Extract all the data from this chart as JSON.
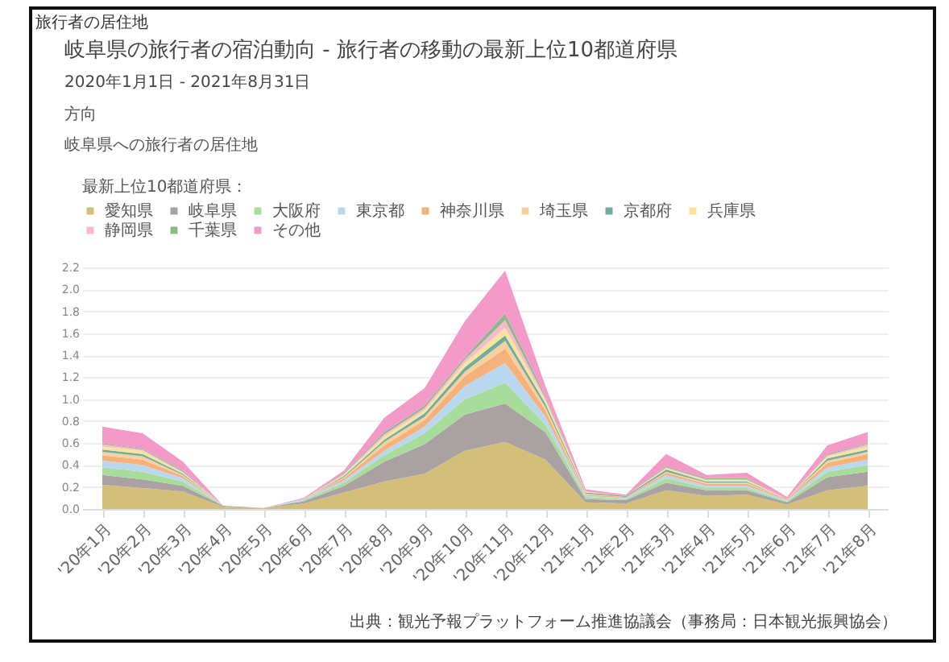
{
  "chart_data": {
    "type": "area",
    "stacked": true,
    "title": "岐阜県の旅行者の宿泊動向 - 旅行者の移動の最新上位10都道府県",
    "subtitle": "2020年1月1日 - 2021年8月31日",
    "annotations": [
      "旅行者の居住地",
      "方向",
      "岐阜県への旅行者の居住地",
      "出典：観光予報プラットフォーム推進協議会（事務局：日本観光振興協会）"
    ],
    "legend_title": "最新上位10都道府県：",
    "categories": [
      "'20年1月",
      "'20年2月",
      "'20年3月",
      "'20年4月",
      "'20年5月",
      "'20年6月",
      "'20年7月",
      "'20年8月",
      "'20年9月",
      "'20年10月",
      "'20年11月",
      "'20年12月",
      "'21年1月",
      "'21年2月",
      "'21年3月",
      "'21年4月",
      "'21年5月",
      "'21年6月",
      "'21年7月",
      "'21年8月"
    ],
    "series": [
      {
        "name": "愛知県",
        "color": "#d4bf7a",
        "values": [
          0.22,
          0.19,
          0.16,
          0.02,
          0.01,
          0.05,
          0.15,
          0.25,
          0.32,
          0.53,
          0.61,
          0.45,
          0.06,
          0.05,
          0.17,
          0.12,
          0.13,
          0.04,
          0.17,
          0.21
        ]
      },
      {
        "name": "岐阜県",
        "color": "#aaa2a2",
        "values": [
          0.09,
          0.08,
          0.05,
          0.01,
          0,
          0.02,
          0.06,
          0.18,
          0.27,
          0.33,
          0.35,
          0.25,
          0.03,
          0.03,
          0.07,
          0.05,
          0.04,
          0.02,
          0.12,
          0.13
        ]
      },
      {
        "name": "大阪府",
        "color": "#a8dc9a",
        "values": [
          0.07,
          0.07,
          0.04,
          0,
          0,
          0.01,
          0.03,
          0.06,
          0.1,
          0.14,
          0.19,
          0.07,
          0.02,
          0.01,
          0.04,
          0.02,
          0.02,
          0.01,
          0.05,
          0.06
        ]
      },
      {
        "name": "東京都",
        "color": "#b9d8ef",
        "values": [
          0.06,
          0.06,
          0.03,
          0,
          0,
          0.01,
          0.02,
          0.04,
          0.06,
          0.12,
          0.18,
          0.07,
          0.01,
          0.01,
          0.03,
          0.02,
          0.02,
          0.01,
          0.04,
          0.05
        ]
      },
      {
        "name": "神奈川県",
        "color": "#f4b27a",
        "values": [
          0.05,
          0.05,
          0.02,
          0,
          0,
          0,
          0.02,
          0.05,
          0.06,
          0.09,
          0.13,
          0.06,
          0.01,
          0.01,
          0.02,
          0.02,
          0.02,
          0.01,
          0.04,
          0.05
        ]
      },
      {
        "name": "埼玉県",
        "color": "#f8d0a0",
        "values": [
          0.03,
          0.03,
          0.01,
          0,
          0,
          0,
          0.01,
          0.03,
          0.03,
          0.04,
          0.07,
          0.03,
          0.01,
          0,
          0.01,
          0.01,
          0.01,
          0,
          0.02,
          0.02
        ]
      },
      {
        "name": "京都府",
        "color": "#6fae9e",
        "values": [
          0.02,
          0.02,
          0.01,
          0,
          0,
          0,
          0.01,
          0.02,
          0.03,
          0.04,
          0.05,
          0.03,
          0.01,
          0.01,
          0.02,
          0.01,
          0.01,
          0,
          0.02,
          0.02
        ]
      },
      {
        "name": "兵庫県",
        "color": "#fbe39c",
        "values": [
          0.03,
          0.03,
          0.01,
          0,
          0,
          0,
          0.01,
          0.03,
          0.03,
          0.04,
          0.07,
          0.03,
          0.01,
          0,
          0.01,
          0.01,
          0.01,
          0,
          0.02,
          0.03
        ]
      },
      {
        "name": "静岡県",
        "color": "#f7bccb",
        "values": [
          0.02,
          0.01,
          0.01,
          0,
          0,
          0,
          0.01,
          0.02,
          0.02,
          0.03,
          0.07,
          0.02,
          0,
          0,
          0.01,
          0.01,
          0.01,
          0,
          0.01,
          0.02
        ]
      },
      {
        "name": "千葉県",
        "color": "#8fb88a",
        "values": [
          0.01,
          0.01,
          0.01,
          0,
          0,
          0,
          0.01,
          0.02,
          0.02,
          0.02,
          0.06,
          0.02,
          0,
          0,
          0.01,
          0.01,
          0.01,
          0,
          0.01,
          0.01
        ]
      },
      {
        "name": "その他",
        "color": "#f49ac8",
        "values": [
          0.15,
          0.14,
          0.08,
          0,
          0,
          0.01,
          0.02,
          0.13,
          0.16,
          0.33,
          0.39,
          0.09,
          0.02,
          0.01,
          0.11,
          0.03,
          0.05,
          0.02,
          0.08,
          0.1
        ]
      }
    ],
    "ylim": [
      0,
      2.2
    ],
    "yticks": [
      {
        "value": 0,
        "label": "0.0"
      },
      {
        "value": 0.2,
        "label": "0.2"
      },
      {
        "value": 0.4,
        "label": "0.4"
      },
      {
        "value": 0.6,
        "label": "0.6"
      },
      {
        "value": 0.8,
        "label": "0.8"
      },
      {
        "value": 1.0,
        "label": "1.0"
      },
      {
        "value": 1.2,
        "label": "1.2"
      },
      {
        "value": 1.4,
        "label": "1.4"
      },
      {
        "value": 1.6,
        "label": "1.6"
      },
      {
        "value": 1.8,
        "label": "1.8"
      },
      {
        "value": 2.0,
        "label": "2.0"
      },
      {
        "value": 2.2,
        "label": "2.2"
      }
    ],
    "grid": "y",
    "legend": "top"
  }
}
